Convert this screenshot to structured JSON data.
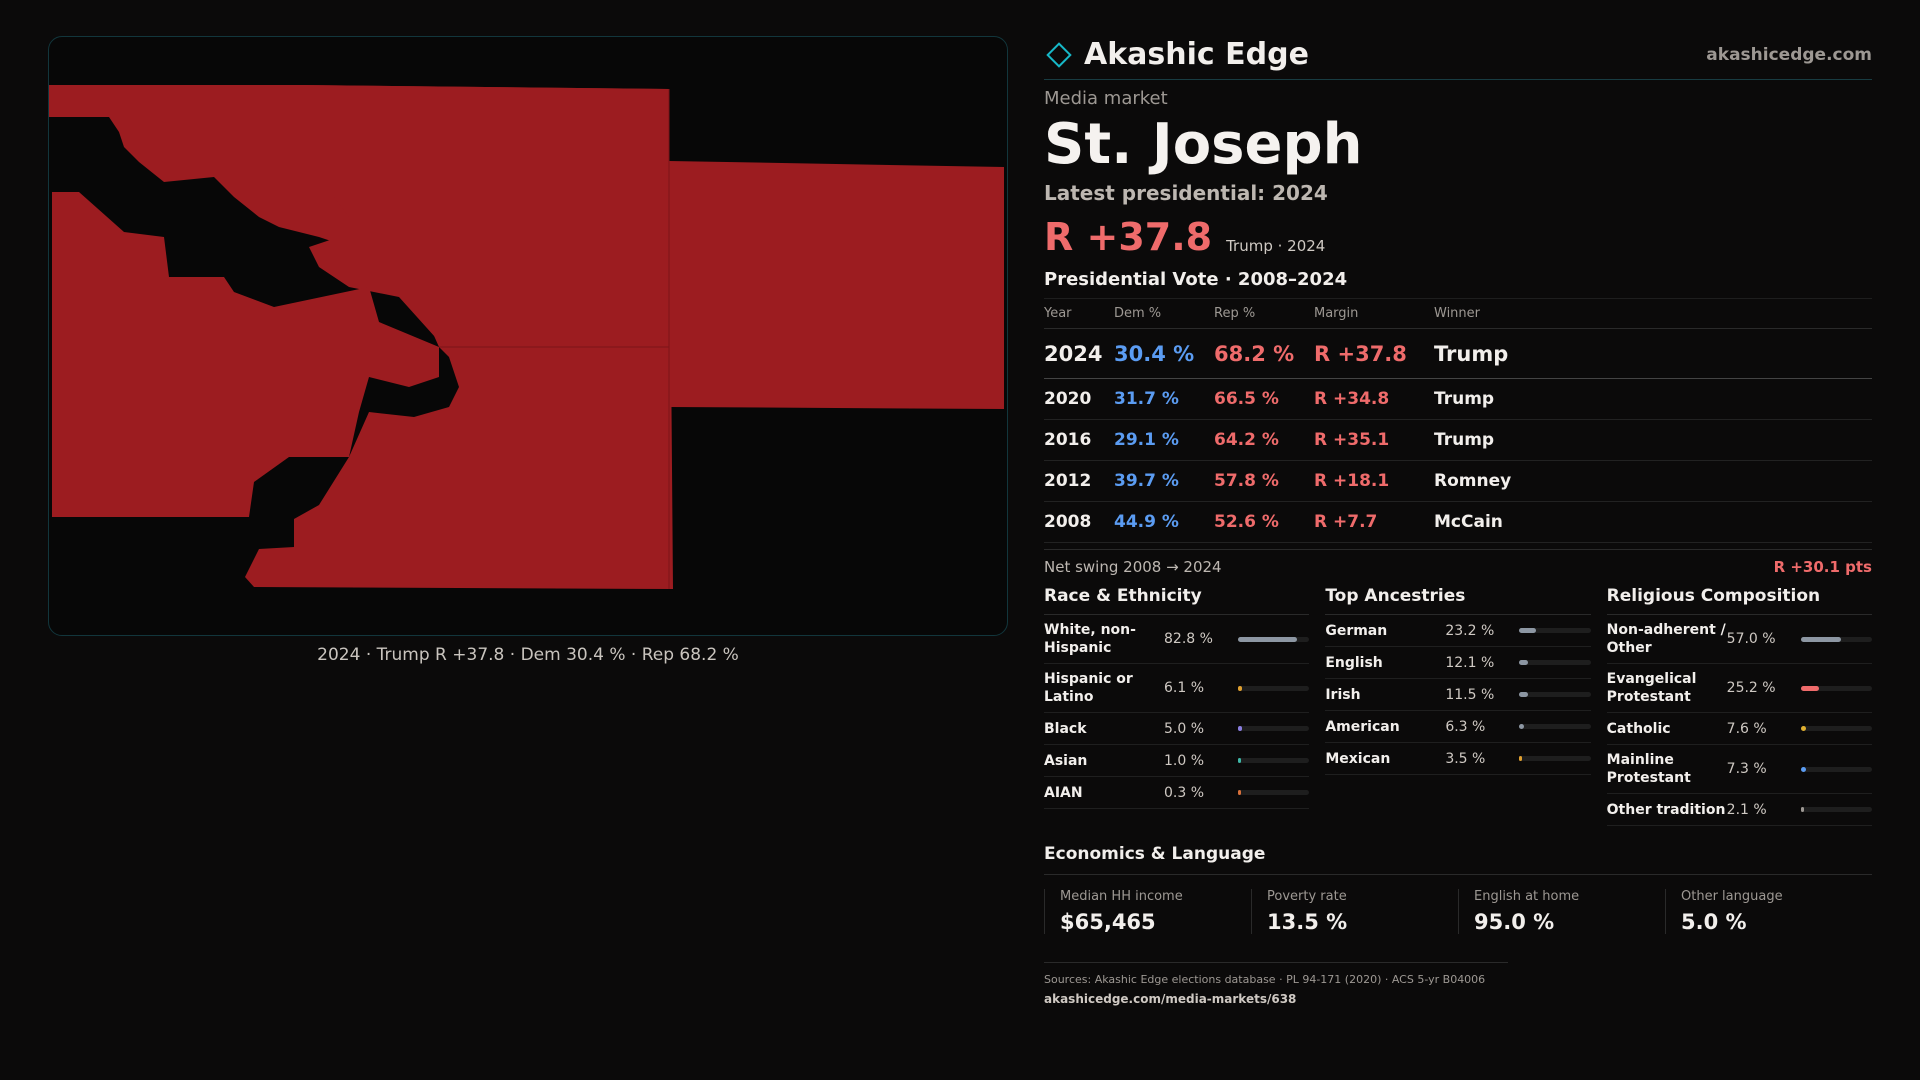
{
  "map": {
    "fill_color": "#9c1c20",
    "caption": "2024 · Trump R +37.8 · Dem 30.4 % · Rep 68.2 %"
  },
  "header": {
    "brand_name": "Akashic Edge",
    "brand_url": "akashicedge.com",
    "accent_color": "#17b8c8"
  },
  "market": {
    "eyebrow": "Media market",
    "name": "St. Joseph",
    "latest_label": "Latest presidential: 2024",
    "margin": "R +37.8",
    "margin_note": "Trump · 2024"
  },
  "votes": {
    "title": "Presidential Vote · 2008–2024",
    "columns": [
      "Year",
      "Dem %",
      "Rep %",
      "Margin",
      "Winner"
    ],
    "rows": [
      {
        "year": "2024",
        "dem": "30.4 %",
        "rep": "68.2 %",
        "margin": "R +37.8",
        "winner": "Trump"
      },
      {
        "year": "2020",
        "dem": "31.7 %",
        "rep": "66.5 %",
        "margin": "R +34.8",
        "winner": "Trump"
      },
      {
        "year": "2016",
        "dem": "29.1 %",
        "rep": "64.2 %",
        "margin": "R +35.1",
        "winner": "Trump"
      },
      {
        "year": "2012",
        "dem": "39.7 %",
        "rep": "57.8 %",
        "margin": "R +18.1",
        "winner": "Romney"
      },
      {
        "year": "2008",
        "dem": "44.9 %",
        "rep": "52.6 %",
        "margin": "R +7.7",
        "winner": "McCain"
      }
    ],
    "swing_label": "Net swing 2008 → 2024",
    "swing_value": "R +30.1 pts"
  },
  "race": {
    "title": "Race & Ethnicity",
    "items": [
      {
        "label": "White, non-Hispanic",
        "value": "82.8 %",
        "pct": 82.8,
        "color": "#8d97a3"
      },
      {
        "label": "Hispanic or Latino",
        "value": "6.1 %",
        "pct": 6.1,
        "color": "#e0a030"
      },
      {
        "label": "Black",
        "value": "5.0 %",
        "pct": 5.0,
        "color": "#8a7ee0"
      },
      {
        "label": "Asian",
        "value": "1.0 %",
        "pct": 1.0,
        "color": "#3fb8a8"
      },
      {
        "label": "AIAN",
        "value": "0.3 %",
        "pct": 0.3,
        "color": "#d8703a"
      }
    ]
  },
  "ancestry": {
    "title": "Top Ancestries",
    "items": [
      {
        "label": "German",
        "value": "23.2 %",
        "pct": 23.2,
        "color": "#8d97a3"
      },
      {
        "label": "English",
        "value": "12.1 %",
        "pct": 12.1,
        "color": "#8d97a3"
      },
      {
        "label": "Irish",
        "value": "11.5 %",
        "pct": 11.5,
        "color": "#8d97a3"
      },
      {
        "label": "American",
        "value": "6.3 %",
        "pct": 6.3,
        "color": "#8d97a3"
      },
      {
        "label": "Mexican",
        "value": "3.5 %",
        "pct": 3.5,
        "color": "#e0a030"
      }
    ]
  },
  "religion": {
    "title": "Religious Composition",
    "items": [
      {
        "label": "Non-adherent / Other",
        "value": "57.0 %",
        "pct": 57.0,
        "color": "#8d97a3"
      },
      {
        "label": "Evangelical Protestant",
        "value": "25.2 %",
        "pct": 25.2,
        "color": "#ef6b6b"
      },
      {
        "label": "Catholic",
        "value": "7.6 %",
        "pct": 7.6,
        "color": "#e0b030"
      },
      {
        "label": "Mainline Protestant",
        "value": "7.3 %",
        "pct": 7.3,
        "color": "#5b9cf2"
      },
      {
        "label": "Other tradition",
        "value": "2.1 %",
        "pct": 2.1,
        "color": "#9d9893"
      }
    ]
  },
  "economics": {
    "title": "Economics & Language",
    "cards": [
      {
        "label": "Median HH income",
        "value": "$65,465"
      },
      {
        "label": "Poverty rate",
        "value": "13.5 %"
      },
      {
        "label": "English at home",
        "value": "95.0 %"
      },
      {
        "label": "Other language",
        "value": "5.0 %"
      }
    ]
  },
  "footer": {
    "sources": "Sources: Akashic Edge elections database · PL 94-171 (2020) · ACS 5-yr B04006",
    "url": "akashicedge.com/media-markets/638"
  }
}
